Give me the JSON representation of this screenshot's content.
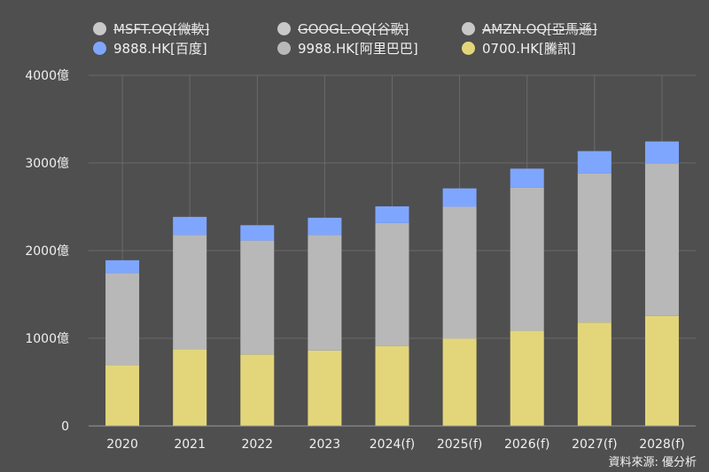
{
  "legend": [
    {
      "label": "MSFT.OQ[微軟]",
      "color": "#c8c8c8",
      "hidden": true
    },
    {
      "label": "GOOGL.OQ[谷歌]",
      "color": "#c8c8c8",
      "hidden": true
    },
    {
      "label": "AMZN.OQ[亞馬遜]",
      "color": "#c8c8c8",
      "hidden": true
    },
    {
      "label": "9888.HK[百度]",
      "color": "#7fa6ff",
      "hidden": false
    },
    {
      "label": "9988.HK[阿里巴巴]",
      "color": "#b8b8b8",
      "hidden": false
    },
    {
      "label": "0700.HK[騰訊]",
      "color": "#e3d67a",
      "hidden": false
    }
  ],
  "source": "資料來源: 優分析",
  "chart_data": {
    "type": "bar",
    "stacked": true,
    "categories": [
      "2020",
      "2021",
      "2022",
      "2023",
      "2024(f)",
      "2025(f)",
      "2026(f)",
      "2027(f)",
      "2028(f)"
    ],
    "series": [
      {
        "name": "0700.HK[騰訊]",
        "color": "#e3d67a",
        "values": [
          695,
          875,
          815,
          860,
          910,
          995,
          1085,
          1180,
          1255
        ]
      },
      {
        "name": "9988.HK[阿里巴巴]",
        "color": "#b8b8b8",
        "values": [
          1050,
          1305,
          1300,
          1320,
          1405,
          1505,
          1635,
          1700,
          1735
        ]
      },
      {
        "name": "9888.HK[百度]",
        "color": "#7fa6ff",
        "values": [
          145,
          205,
          175,
          195,
          190,
          210,
          215,
          255,
          255
        ]
      }
    ],
    "ylim": [
      0,
      4000
    ],
    "yticks": [
      0,
      1000,
      2000,
      3000,
      4000
    ],
    "ytick_labels": [
      "0",
      "1000億",
      "2000億",
      "3000億",
      "4000億"
    ],
    "grid": true
  }
}
